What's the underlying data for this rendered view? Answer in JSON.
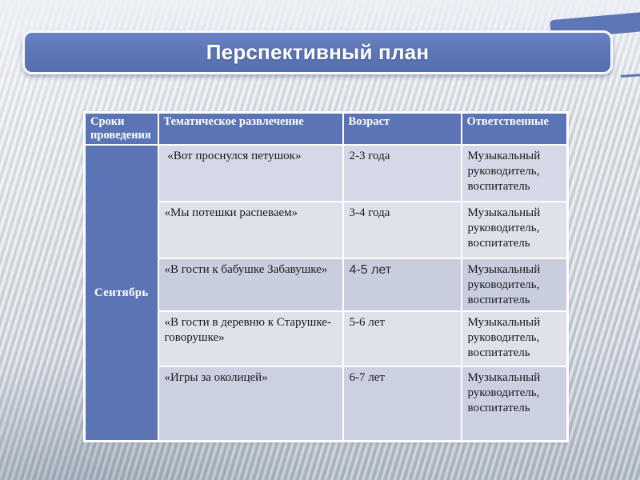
{
  "slide": {
    "title": "Перспективный план"
  },
  "table": {
    "headers": [
      "Сроки проведения",
      "Тематическое развлечение",
      "Возраст",
      "Ответственные"
    ],
    "month": "Сентябрь",
    "rows": [
      {
        "event": " «Вот проснулся петушок»",
        "age": "2-3 года",
        "responsible": "Музыкальный руководитель, воспитатель"
      },
      {
        "event": "«Мы потешки распеваем»",
        "age": "3-4 года",
        "responsible": "Музыкальный руководитель, воспитатель"
      },
      {
        "event": "«В гости к бабушке Забавушке»",
        "age": "4-5 лет",
        "responsible": "Музыкальный руководитель, воспитатель"
      },
      {
        "event": "«В гости в деревню к Старушке-говорушке»",
        "age": "5-6 лет",
        "responsible": "Музыкальный руководитель, воспитатель"
      },
      {
        "event": "«Игры за околицей»",
        "age": "6-7 лет",
        "responsible": "Музыкальный руководитель, воспитатель"
      }
    ]
  },
  "colors": {
    "accent-blue": "#5b74b5",
    "title-blue": "#5d76b8",
    "grid-white": "#ffffff",
    "row-light": "#dfe1eb",
    "row-mid": "#d5d8e6",
    "row-dark": "#c9cedf",
    "row-dark2": "#ccd1e1",
    "text-dark": "#1a1a1c",
    "bg-top": "#e8ebf0",
    "bg-bottom": "#b8c2cc"
  }
}
